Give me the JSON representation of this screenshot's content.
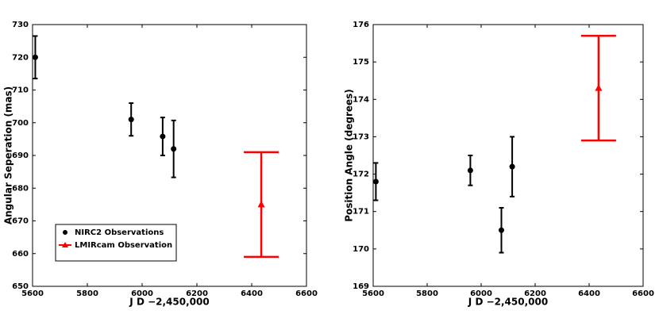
{
  "chart_data": [
    {
      "type": "scatter",
      "xlabel": "J D −2,450,000",
      "ylabel": "Angular Seperation (mas)",
      "xlim": [
        5600,
        6600
      ],
      "xticks": [
        5600,
        5800,
        6000,
        6200,
        6400,
        6600
      ],
      "ylim": [
        650,
        730
      ],
      "yticks": [
        650,
        660,
        670,
        680,
        690,
        700,
        710,
        720,
        730
      ],
      "legend": "lower left",
      "series": [
        {
          "name": "NIRC2 Observations",
          "color": "#000000",
          "marker": "circle",
          "x": [
            5610,
            5960,
            6075,
            6115
          ],
          "values": [
            720,
            701,
            695.8,
            692
          ],
          "errors": [
            6.5,
            5,
            5.8,
            8.7
          ]
        },
        {
          "name": "LMIRcam Observation",
          "color": "#ff0000",
          "marker": "triangle",
          "x": [
            6435
          ],
          "values": [
            675
          ],
          "errors": [
            16
          ]
        }
      ]
    },
    {
      "type": "scatter",
      "xlabel": "J D −2,450,000",
      "ylabel": "Position Angle (degrees)",
      "xlim": [
        5600,
        6600
      ],
      "xticks": [
        5600,
        5800,
        6000,
        6200,
        6400,
        6600
      ],
      "ylim": [
        169,
        176
      ],
      "yticks": [
        169,
        170,
        171,
        172,
        173,
        174,
        175,
        176
      ],
      "series": [
        {
          "color": "#000000",
          "marker": "circle",
          "x": [
            5610,
            5960,
            6075,
            6115
          ],
          "values": [
            171.8,
            172.1,
            170.5,
            172.2
          ],
          "errors": [
            0.5,
            0.4,
            0.6,
            0.8
          ]
        },
        {
          "color": "#ff0000",
          "marker": "triangle",
          "x": [
            6435
          ],
          "values": [
            174.3
          ],
          "errors": [
            1.4
          ]
        }
      ]
    }
  ]
}
